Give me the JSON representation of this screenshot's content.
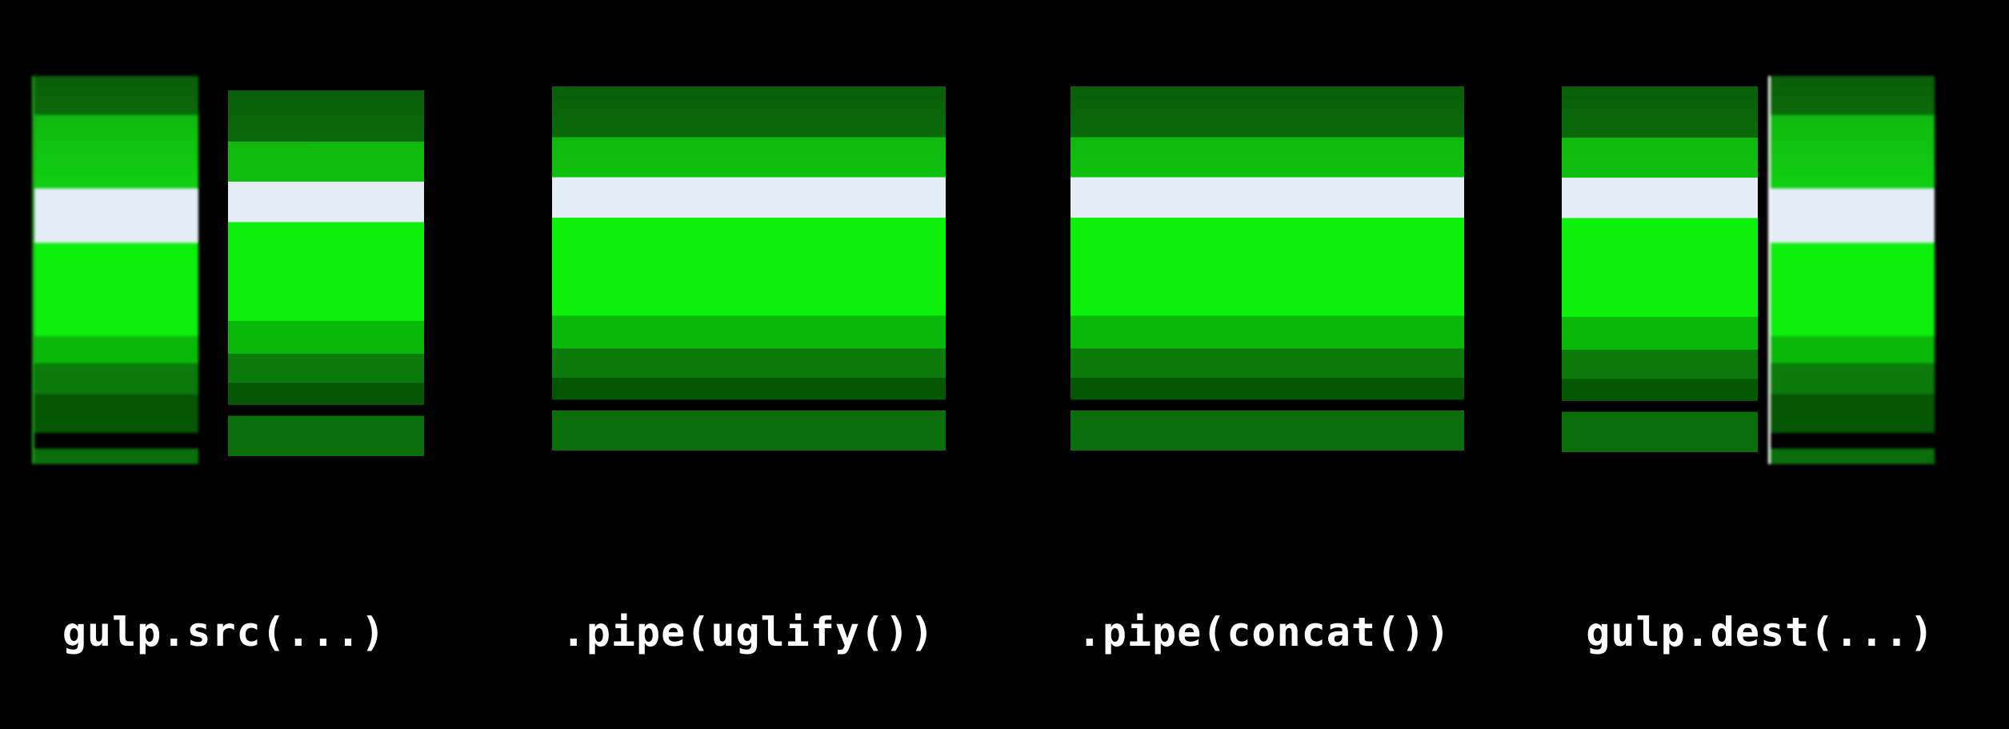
{
  "stages": [
    {
      "label": "gulp.src(...)"
    },
    {
      "label": ".pipe(uglify())"
    },
    {
      "label": ".pipe(concat())"
    },
    {
      "label": "gulp.dest(...)"
    }
  ],
  "colors": {
    "background": "#000000",
    "pipe_dark": "#0a6a0a",
    "pipe_mid": "#10c010",
    "pipe_bright": "#0cf00c",
    "pipe_highlight": "#e4ecf6",
    "label_text": "#ffffff"
  }
}
